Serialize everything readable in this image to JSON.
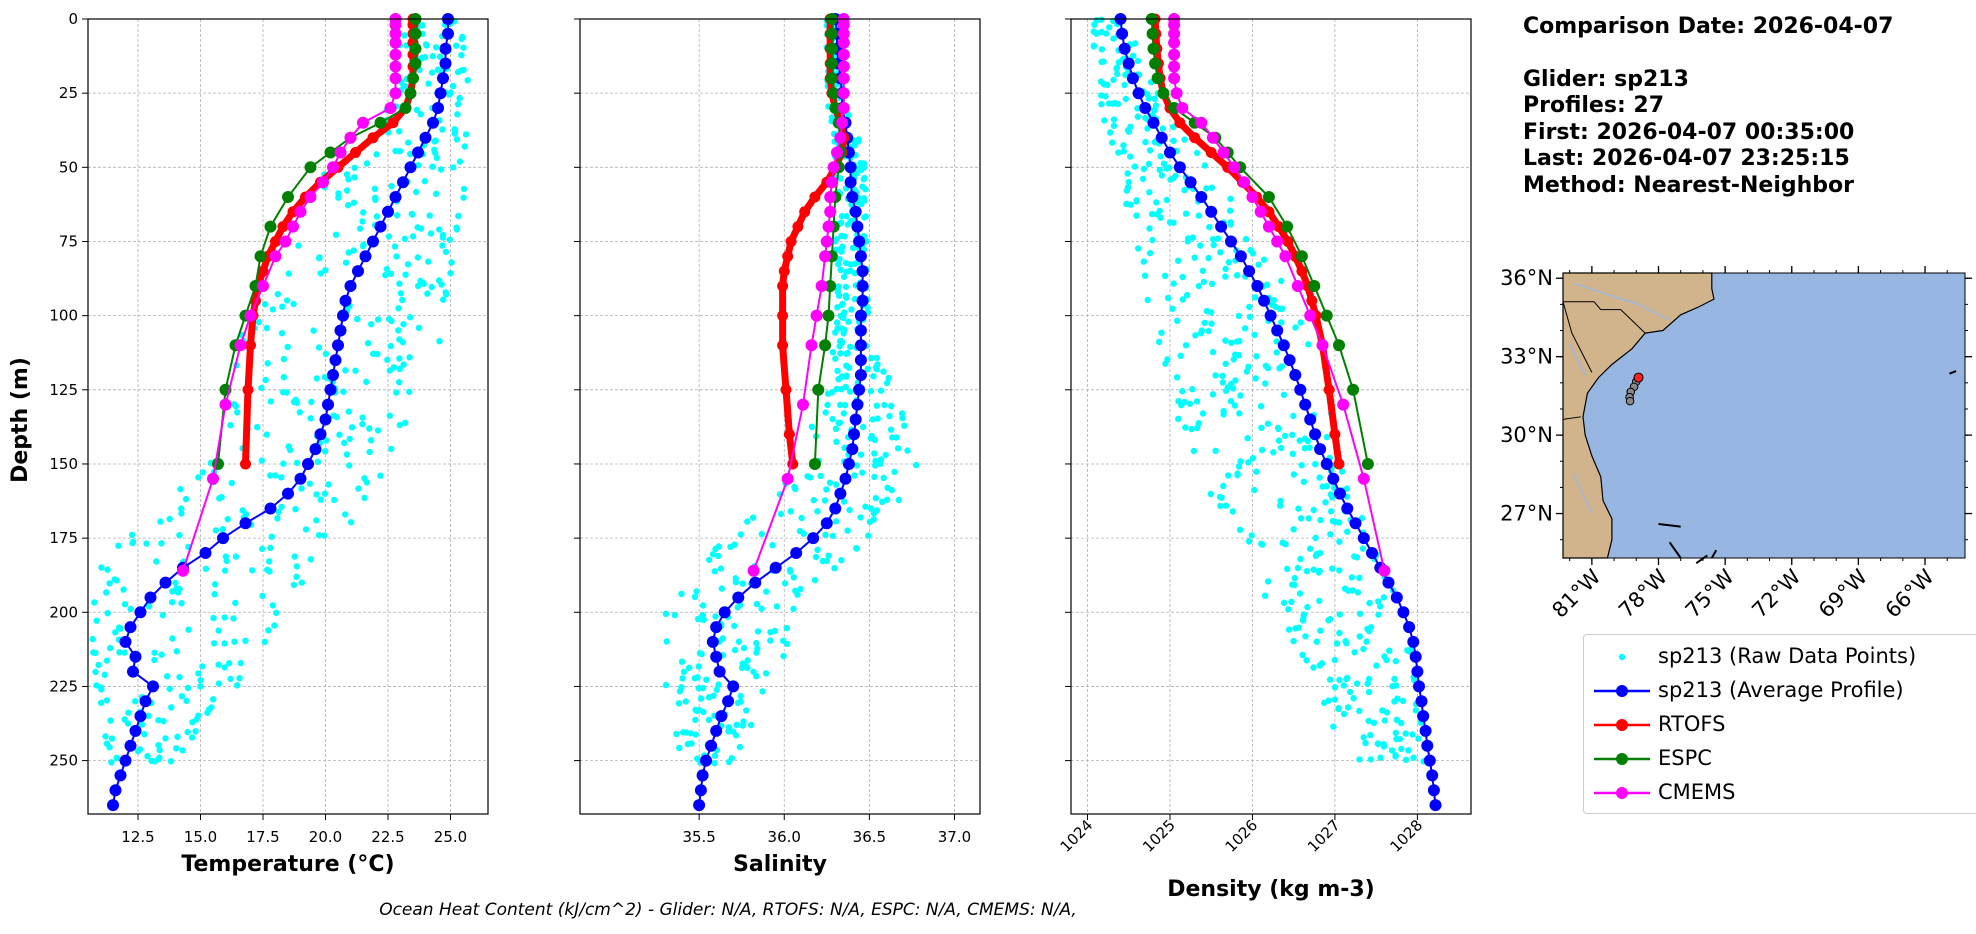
{
  "info": {
    "comparison_date": "Comparison Date: 2026-04-07",
    "glider": "Glider: sp213",
    "profiles": "Profiles: 27",
    "first": "First: 2026-04-07 00:35:00",
    "last": "Last: 2026-04-07 23:25:15",
    "method": "Method: Nearest-Neighbor"
  },
  "footer": "Ocean Heat Content (kJ/cm^2) - Glider: N/A,  RTOFS: N/A,  ESPC: N/A,  CMEMS: N/A,",
  "legend": [
    {
      "label": "sp213 (Raw Data Points)",
      "color": "#00ffff",
      "style": "dots"
    },
    {
      "label": "sp213 (Average Profile)",
      "color": "#0000ff",
      "style": "line-marker"
    },
    {
      "label": "RTOFS",
      "color": "#ff0000",
      "style": "line-marker"
    },
    {
      "label": "ESPC",
      "color": "#008000",
      "style": "line-marker"
    },
    {
      "label": "CMEMS",
      "color": "#ff00ff",
      "style": "line-marker"
    }
  ],
  "map": {
    "lat_labels": [
      "36°N",
      "33°N",
      "30°N",
      "27°N"
    ],
    "lon_labels": [
      "81°W",
      "78°W",
      "75°W",
      "72°W",
      "69°W",
      "66°W"
    ],
    "ocean_color": "#97b6e1",
    "land_color": "#d2b48c"
  },
  "chart_data": [
    {
      "type": "line",
      "xlabel": "Temperature (°C)",
      "ylabel": "Depth (m)",
      "xlim": [
        10.5,
        26.5
      ],
      "ylim": [
        268,
        0
      ],
      "xticks": [
        12.5,
        15.0,
        17.5,
        20.0,
        22.5,
        25.0
      ],
      "xtick_labels": [
        "12.5",
        "15.0",
        "17.5",
        "20.0",
        "22.5",
        "25.0"
      ],
      "yticks": [
        0,
        25,
        50,
        75,
        100,
        125,
        150,
        175,
        200,
        225,
        250
      ],
      "ytick_labels": [
        "0",
        "25",
        "50",
        "75",
        "100",
        "125",
        "150",
        "175",
        "200",
        "225",
        "250"
      ],
      "raw_range": {
        "depth": [
          0,
          250
        ],
        "min": [
          22.8,
          22.8,
          19.8,
          19.0,
          16.8,
          15.7,
          15.0,
          11.2,
          10.6,
          10.8,
          11.0
        ],
        "max": [
          25.7,
          25.7,
          25.6,
          25.5,
          25.0,
          23.8,
          22.5,
          20.5,
          18.5,
          16.5,
          14.0
        ]
      },
      "series": [
        {
          "name": "sp213 (Average Profile)",
          "color": "#0000ff",
          "depth": [
            0,
            5,
            10,
            15,
            20,
            25,
            30,
            35,
            40,
            45,
            50,
            55,
            60,
            65,
            70,
            75,
            80,
            85,
            90,
            95,
            100,
            105,
            110,
            115,
            120,
            125,
            130,
            135,
            140,
            145,
            150,
            155,
            160,
            165,
            170,
            175,
            180,
            185,
            190,
            195,
            200,
            205,
            210,
            215,
            220,
            225,
            230,
            235,
            240,
            245,
            250,
            255,
            260,
            265
          ],
          "values": [
            24.9,
            24.9,
            24.8,
            24.8,
            24.7,
            24.6,
            24.5,
            24.3,
            24.0,
            23.7,
            23.4,
            23.1,
            22.8,
            22.5,
            22.2,
            21.9,
            21.6,
            21.3,
            21.0,
            20.8,
            20.7,
            20.6,
            20.5,
            20.4,
            20.3,
            20.2,
            20.1,
            20.0,
            19.8,
            19.6,
            19.3,
            19.0,
            18.5,
            17.8,
            16.8,
            15.9,
            15.2,
            14.3,
            13.6,
            13.0,
            12.6,
            12.2,
            12.0,
            12.4,
            12.3,
            13.1,
            12.8,
            12.6,
            12.4,
            12.2,
            12.0,
            11.8,
            11.6,
            11.5
          ]
        },
        {
          "name": "RTOFS",
          "color": "#ff0000",
          "depth": [
            0,
            2,
            5,
            8,
            12,
            16,
            20,
            25,
            30,
            35,
            40,
            45,
            50,
            55,
            60,
            65,
            70,
            75,
            80,
            85,
            90,
            95,
            100,
            110,
            125,
            150
          ],
          "values": [
            23.5,
            23.5,
            23.5,
            23.5,
            23.5,
            23.5,
            23.5,
            23.4,
            23.2,
            22.7,
            21.9,
            21.2,
            20.5,
            19.8,
            19.2,
            18.7,
            18.3,
            18.0,
            17.7,
            17.5,
            17.3,
            17.2,
            17.1,
            17.0,
            16.9,
            16.8
          ]
        },
        {
          "name": "ESPC",
          "color": "#008000",
          "depth": [
            0,
            5,
            10,
            15,
            20,
            25,
            30,
            35,
            40,
            45,
            50,
            60,
            70,
            80,
            90,
            100,
            110,
            125,
            150
          ],
          "values": [
            23.6,
            23.6,
            23.6,
            23.6,
            23.5,
            23.4,
            23.2,
            22.2,
            21.0,
            20.2,
            19.4,
            18.5,
            17.8,
            17.4,
            17.2,
            16.8,
            16.4,
            16.0,
            15.7
          ]
        },
        {
          "name": "CMEMS",
          "color": "#ff00ff",
          "depth": [
            0,
            2,
            5,
            8,
            12,
            16,
            20,
            25,
            30,
            35,
            40,
            45,
            50,
            55,
            60,
            65,
            70,
            75,
            80,
            90,
            100,
            110,
            130,
            155,
            186
          ],
          "values": [
            22.8,
            22.8,
            22.8,
            22.8,
            22.8,
            22.8,
            22.8,
            22.8,
            22.6,
            21.5,
            21.0,
            20.6,
            20.3,
            19.9,
            19.4,
            19.0,
            18.7,
            18.4,
            18.0,
            17.5,
            17.0,
            16.6,
            16.0,
            15.5,
            14.3
          ]
        }
      ]
    },
    {
      "type": "line",
      "xlabel": "Salinity",
      "xlim": [
        34.8,
        37.15
      ],
      "ylim": [
        268,
        0
      ],
      "xticks": [
        35.5,
        36.0,
        36.5,
        37.0
      ],
      "xtick_labels": [
        "35.5",
        "36.0",
        "36.5",
        "37.0"
      ],
      "yticks": [
        0,
        25,
        50,
        75,
        100,
        125,
        150,
        175,
        200,
        225,
        250
      ],
      "raw_range": {
        "depth": [
          0,
          250
        ],
        "min": [
          36.25,
          36.25,
          36.3,
          36.3,
          36.3,
          36.25,
          36.05,
          35.6,
          35.3,
          35.3,
          35.4
        ],
        "max": [
          36.32,
          36.35,
          36.5,
          36.48,
          36.5,
          36.65,
          36.85,
          36.45,
          36.1,
          35.9,
          35.7
        ]
      },
      "series": [
        {
          "name": "sp213 (Average Profile)",
          "color": "#0000ff",
          "depth": [
            0,
            5,
            10,
            15,
            20,
            25,
            30,
            35,
            40,
            45,
            50,
            55,
            60,
            65,
            70,
            75,
            80,
            85,
            90,
            95,
            100,
            105,
            110,
            115,
            120,
            125,
            130,
            135,
            140,
            145,
            150,
            155,
            160,
            165,
            170,
            175,
            180,
            185,
            190,
            195,
            200,
            205,
            210,
            215,
            220,
            225,
            230,
            235,
            240,
            245,
            250,
            255,
            260,
            265
          ],
          "values": [
            36.3,
            36.31,
            36.31,
            36.32,
            36.33,
            36.34,
            36.34,
            36.36,
            36.37,
            36.38,
            36.39,
            36.39,
            36.4,
            36.42,
            36.43,
            36.44,
            36.45,
            36.46,
            36.46,
            36.46,
            36.45,
            36.45,
            36.45,
            36.45,
            36.45,
            36.44,
            36.43,
            36.42,
            36.41,
            36.4,
            36.38,
            36.36,
            36.33,
            36.3,
            36.25,
            36.17,
            36.07,
            35.95,
            35.83,
            35.73,
            35.65,
            35.6,
            35.58,
            35.6,
            35.62,
            35.7,
            35.67,
            35.63,
            35.6,
            35.57,
            35.54,
            35.52,
            35.51,
            35.5
          ]
        },
        {
          "name": "RTOFS",
          "color": "#ff0000",
          "depth": [
            0,
            5,
            10,
            15,
            20,
            25,
            30,
            35,
            40,
            45,
            50,
            55,
            60,
            65,
            70,
            75,
            80,
            85,
            90,
            100,
            110,
            125,
            140,
            150
          ],
          "values": [
            36.27,
            36.27,
            36.27,
            36.27,
            36.27,
            36.28,
            36.3,
            36.33,
            36.35,
            36.34,
            36.3,
            36.25,
            36.18,
            36.12,
            36.08,
            36.04,
            36.02,
            36.0,
            35.99,
            35.99,
            35.99,
            36.01,
            36.03,
            36.05
          ]
        },
        {
          "name": "ESPC",
          "color": "#008000",
          "depth": [
            0,
            5,
            10,
            15,
            20,
            25,
            30,
            35,
            40,
            45,
            50,
            60,
            70,
            80,
            90,
            100,
            110,
            125,
            150
          ],
          "values": [
            36.28,
            36.28,
            36.28,
            36.28,
            36.28,
            36.29,
            36.3,
            36.32,
            36.33,
            36.33,
            36.32,
            36.3,
            36.29,
            36.28,
            36.27,
            36.26,
            36.24,
            36.2,
            36.18
          ]
        },
        {
          "name": "CMEMS",
          "color": "#ff00ff",
          "depth": [
            0,
            2,
            5,
            8,
            12,
            16,
            20,
            25,
            30,
            35,
            40,
            45,
            50,
            55,
            60,
            65,
            70,
            75,
            80,
            90,
            100,
            110,
            130,
            155,
            186
          ],
          "values": [
            36.35,
            36.35,
            36.35,
            36.35,
            36.35,
            36.35,
            36.35,
            36.35,
            36.35,
            36.34,
            36.33,
            36.31,
            36.29,
            36.28,
            36.27,
            36.27,
            36.26,
            36.25,
            36.24,
            36.22,
            36.19,
            36.16,
            36.11,
            36.02,
            35.82
          ]
        }
      ]
    },
    {
      "type": "line",
      "xlabel": "Density (kg m-3)",
      "xlim": [
        1023.8,
        1028.65
      ],
      "ylim": [
        268,
        0
      ],
      "xticks": [
        1024,
        1025,
        1026,
        1027,
        1028
      ],
      "xtick_labels": [
        "1024",
        "1025",
        "1026",
        "1027",
        "1028"
      ],
      "yticks": [
        0,
        25,
        50,
        75,
        100,
        125,
        150,
        175,
        200,
        225,
        250
      ],
      "raw_range": {
        "depth": [
          0,
          250
        ],
        "min": [
          1024.05,
          1024.1,
          1024.4,
          1024.55,
          1024.8,
          1025.0,
          1025.25,
          1025.75,
          1026.3,
          1026.8,
          1027.2
        ],
        "max": [
          1024.45,
          1024.9,
          1025.5,
          1026.1,
          1026.6,
          1026.9,
          1027.1,
          1027.5,
          1027.85,
          1028.05,
          1028.15
        ]
      },
      "series": [
        {
          "name": "sp213 (Average Profile)",
          "color": "#0000ff",
          "depth": [
            0,
            5,
            10,
            15,
            20,
            25,
            30,
            35,
            40,
            45,
            50,
            55,
            60,
            65,
            70,
            75,
            80,
            85,
            90,
            95,
            100,
            105,
            110,
            115,
            120,
            125,
            130,
            135,
            140,
            145,
            150,
            155,
            160,
            165,
            170,
            175,
            180,
            185,
            190,
            195,
            200,
            205,
            210,
            215,
            220,
            225,
            230,
            235,
            240,
            245,
            250,
            255,
            260,
            265
          ],
          "values": [
            1024.4,
            1024.42,
            1024.45,
            1024.5,
            1024.55,
            1024.62,
            1024.7,
            1024.8,
            1024.9,
            1025.0,
            1025.12,
            1025.25,
            1025.38,
            1025.5,
            1025.62,
            1025.74,
            1025.86,
            1025.96,
            1026.06,
            1026.14,
            1026.22,
            1026.3,
            1026.38,
            1026.45,
            1026.52,
            1026.58,
            1026.64,
            1026.7,
            1026.76,
            1026.82,
            1026.9,
            1026.98,
            1027.06,
            1027.15,
            1027.25,
            1027.35,
            1027.45,
            1027.55,
            1027.65,
            1027.75,
            1027.83,
            1027.9,
            1027.95,
            1027.98,
            1028.0,
            1028.02,
            1028.05,
            1028.07,
            1028.1,
            1028.12,
            1028.15,
            1028.18,
            1028.2,
            1028.22
          ]
        },
        {
          "name": "RTOFS",
          "color": "#ff0000",
          "depth": [
            0,
            5,
            10,
            15,
            20,
            25,
            30,
            35,
            40,
            45,
            50,
            55,
            60,
            65,
            70,
            75,
            80,
            85,
            90,
            95,
            100,
            110,
            125,
            140,
            150
          ],
          "values": [
            1024.82,
            1024.83,
            1024.84,
            1024.86,
            1024.88,
            1024.92,
            1025.0,
            1025.12,
            1025.3,
            1025.5,
            1025.7,
            1025.88,
            1026.05,
            1026.2,
            1026.32,
            1026.43,
            1026.52,
            1026.6,
            1026.67,
            1026.72,
            1026.77,
            1026.85,
            1026.93,
            1027.0,
            1027.05
          ]
        },
        {
          "name": "ESPC",
          "color": "#008000",
          "depth": [
            0,
            5,
            10,
            15,
            20,
            25,
            30,
            35,
            40,
            45,
            50,
            60,
            70,
            80,
            90,
            100,
            110,
            125,
            150
          ],
          "values": [
            1024.78,
            1024.79,
            1024.8,
            1024.82,
            1024.85,
            1024.92,
            1025.05,
            1025.3,
            1025.55,
            1025.7,
            1025.85,
            1026.2,
            1026.42,
            1026.6,
            1026.75,
            1026.9,
            1027.05,
            1027.22,
            1027.4
          ]
        },
        {
          "name": "CMEMS",
          "color": "#ff00ff",
          "depth": [
            0,
            2,
            5,
            8,
            12,
            16,
            20,
            25,
            30,
            35,
            40,
            45,
            50,
            55,
            60,
            65,
            70,
            75,
            80,
            90,
            100,
            110,
            130,
            155,
            186
          ],
          "values": [
            1025.05,
            1025.05,
            1025.05,
            1025.05,
            1025.05,
            1025.05,
            1025.05,
            1025.08,
            1025.15,
            1025.38,
            1025.52,
            1025.65,
            1025.78,
            1025.9,
            1026.0,
            1026.1,
            1026.2,
            1026.3,
            1026.4,
            1026.55,
            1026.7,
            1026.85,
            1027.1,
            1027.35,
            1027.6
          ]
        }
      ]
    }
  ]
}
